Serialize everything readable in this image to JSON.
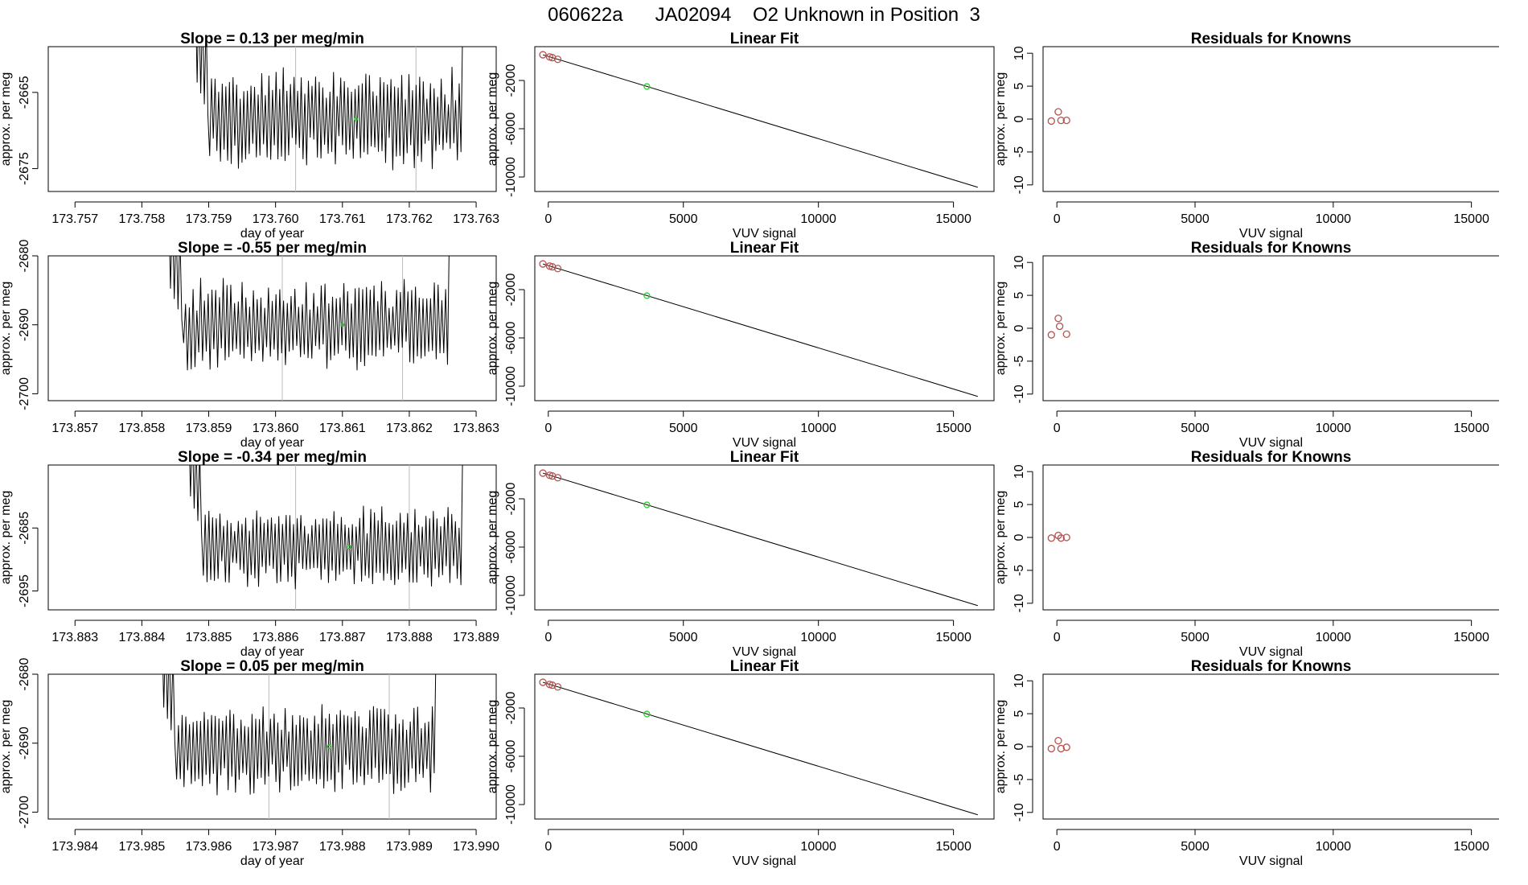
{
  "page_title": "060622a      JA02094    O2 Unknown in Position  3",
  "colors": {
    "series": "#000000",
    "known_point": "#b5524e",
    "unknown_point": "#22cc22",
    "fit_line": "#000000",
    "guide_line": "#bbbbbb"
  },
  "chart_data": [
    {
      "type": "line",
      "title": "Slope =  0.13  per meg/min",
      "xlabel": "day of year",
      "ylabel": "approx. per meg",
      "xlim": [
        173.7566,
        173.7633
      ],
      "ylim": [
        -2678,
        -2659
      ],
      "xticks": [
        173.757,
        173.758,
        173.759,
        173.76,
        173.761,
        173.762,
        173.763
      ],
      "xtick_labels": [
        "173.757",
        "173.758",
        "173.759",
        "173.760",
        "173.761",
        "173.762",
        "173.763"
      ],
      "yticks": [
        -2665,
        -2675
      ],
      "ytick_labels": [
        "-2665",
        "-2675"
      ],
      "series_x_range": [
        173.7588,
        173.7628
      ],
      "series_mean": -2668.5,
      "series_amplitude": 6,
      "series_points": 150,
      "vlines": [
        173.7603,
        173.7621
      ],
      "unknown_marker": {
        "x": 173.7612,
        "y": -2668.5
      }
    },
    {
      "type": "scatter",
      "title": "Linear Fit",
      "xlabel": "VUV signal",
      "ylabel": "approx. per meg",
      "xlim": [
        -500,
        16500
      ],
      "ylim": [
        -11200,
        800
      ],
      "xticks": [
        0,
        5000,
        10000,
        15000
      ],
      "xtick_labels": [
        "0",
        "5000",
        "10000",
        "15000"
      ],
      "yticks": [
        -2000,
        -6000,
        -10000
      ],
      "ytick_labels": [
        "-2000",
        "-6000",
        "-10000"
      ],
      "fit_line": {
        "x": [
          -200,
          15900
        ],
        "y": [
          130,
          -10850
        ]
      },
      "known_points": {
        "x": [
          -200,
          50,
          150,
          350
        ],
        "y": [
          130,
          -50,
          -110,
          -250
        ]
      },
      "unknown_points": {
        "x": [
          3650
        ],
        "y": [
          -2500
        ]
      }
    },
    {
      "type": "scatter",
      "title": "Residuals for Knowns",
      "xlabel": "VUV signal",
      "ylabel": "approx. per meg",
      "xlim": [
        -500,
        16000
      ],
      "ylim": [
        -11,
        11
      ],
      "xticks": [
        0,
        5000,
        10000,
        15000
      ],
      "xtick_labels": [
        "0",
        "5000",
        "10000",
        "15000"
      ],
      "yticks": [
        10,
        5,
        0,
        -5,
        -10
      ],
      "ytick_labels": [
        "10",
        "5",
        "0",
        "-5",
        "-10"
      ],
      "known_points": {
        "x": [
          -200,
          50,
          150,
          350
        ],
        "y": [
          -0.3,
          1.1,
          -0.2,
          -0.2
        ]
      }
    },
    {
      "type": "line",
      "title": "Slope =  -0.55  per meg/min",
      "xlabel": "day of year",
      "ylabel": "approx. per meg",
      "xlim": [
        173.8566,
        173.8633
      ],
      "ylim": [
        -2701,
        -2680
      ],
      "xticks": [
        173.857,
        173.858,
        173.859,
        173.86,
        173.861,
        173.862,
        173.863
      ],
      "xtick_labels": [
        "173.857",
        "173.858",
        "173.859",
        "173.860",
        "173.861",
        "173.862",
        "173.863"
      ],
      "yticks": [
        -2680,
        -2690,
        -2700
      ],
      "ytick_labels": [
        "-2680",
        "-2690",
        "-2700"
      ],
      "series_x_range": [
        173.8584,
        173.8626
      ],
      "series_mean": -2690,
      "series_amplitude": 6,
      "series_points": 150,
      "vlines": [
        173.8601,
        173.8619
      ],
      "unknown_marker": {
        "x": 173.861,
        "y": -2690
      }
    },
    {
      "type": "scatter",
      "title": "Linear Fit",
      "xlabel": "VUV signal",
      "ylabel": "approx. per meg",
      "xlim": [
        -500,
        16500
      ],
      "ylim": [
        -11200,
        800
      ],
      "xticks": [
        0,
        5000,
        10000,
        15000
      ],
      "xtick_labels": [
        "0",
        "5000",
        "10000",
        "15000"
      ],
      "yticks": [
        -2000,
        -6000,
        -10000
      ],
      "ytick_labels": [
        "-2000",
        "-6000",
        "-10000"
      ],
      "fit_line": {
        "x": [
          -200,
          15900
        ],
        "y": [
          130,
          -10850
        ]
      },
      "known_points": {
        "x": [
          -200,
          50,
          150,
          350
        ],
        "y": [
          130,
          -50,
          -110,
          -250
        ]
      },
      "unknown_points": {
        "x": [
          3650
        ],
        "y": [
          -2500
        ]
      }
    },
    {
      "type": "scatter",
      "title": "Residuals for Knowns",
      "xlabel": "VUV signal",
      "ylabel": "approx. per meg",
      "xlim": [
        -500,
        16000
      ],
      "ylim": [
        -11,
        11
      ],
      "xticks": [
        0,
        5000,
        10000,
        15000
      ],
      "xtick_labels": [
        "0",
        "5000",
        "10000",
        "15000"
      ],
      "yticks": [
        10,
        5,
        0,
        -5,
        -10
      ],
      "ytick_labels": [
        "10",
        "5",
        "0",
        "-5",
        "-10"
      ],
      "known_points": {
        "x": [
          -200,
          50,
          100,
          350
        ],
        "y": [
          -1.0,
          1.5,
          0.3,
          -0.9
        ]
      }
    },
    {
      "type": "line",
      "title": "Slope =  -0.34  per meg/min",
      "xlabel": "day of year",
      "ylabel": "approx. per meg",
      "xlim": [
        173.8826,
        173.8893
      ],
      "ylim": [
        -2698,
        -2675
      ],
      "xticks": [
        173.883,
        173.884,
        173.885,
        173.886,
        173.887,
        173.888,
        173.889
      ],
      "xtick_labels": [
        "173.883",
        "173.884",
        "173.885",
        "173.886",
        "173.887",
        "173.888",
        "173.889"
      ],
      "yticks": [
        -2685,
        -2695
      ],
      "ytick_labels": [
        "-2685",
        "-2695"
      ],
      "series_x_range": [
        173.8847,
        173.8888
      ],
      "series_mean": -2688,
      "series_amplitude": 6,
      "series_points": 150,
      "vlines": [
        173.8863,
        173.888
      ],
      "unknown_marker": {
        "x": 173.8871,
        "y": -2688
      }
    },
    {
      "type": "scatter",
      "title": "Linear Fit",
      "xlabel": "VUV signal",
      "ylabel": "approx. per meg",
      "xlim": [
        -500,
        16500
      ],
      "ylim": [
        -11200,
        800
      ],
      "xticks": [
        0,
        5000,
        10000,
        15000
      ],
      "xtick_labels": [
        "0",
        "5000",
        "10000",
        "15000"
      ],
      "yticks": [
        -2000,
        -6000,
        -10000
      ],
      "ytick_labels": [
        "-2000",
        "-6000",
        "-10000"
      ],
      "fit_line": {
        "x": [
          -200,
          15900
        ],
        "y": [
          130,
          -10850
        ]
      },
      "known_points": {
        "x": [
          -200,
          50,
          150,
          350
        ],
        "y": [
          130,
          -50,
          -110,
          -250
        ]
      },
      "unknown_points": {
        "x": [
          3650
        ],
        "y": [
          -2500
        ]
      }
    },
    {
      "type": "scatter",
      "title": "Residuals for Knowns",
      "xlabel": "VUV signal",
      "ylabel": "approx. per meg",
      "xlim": [
        -500,
        16000
      ],
      "ylim": [
        -11,
        11
      ],
      "xticks": [
        0,
        5000,
        10000,
        15000
      ],
      "xtick_labels": [
        "0",
        "5000",
        "10000",
        "15000"
      ],
      "yticks": [
        10,
        5,
        0,
        -5,
        -10
      ],
      "ytick_labels": [
        "10",
        "5",
        "0",
        "-5",
        "-10"
      ],
      "known_points": {
        "x": [
          -200,
          50,
          150,
          350
        ],
        "y": [
          -0.1,
          0.3,
          -0.1,
          0.0
        ]
      }
    },
    {
      "type": "line",
      "title": "Slope =  0.05  per meg/min",
      "xlabel": "day of year",
      "ylabel": "approx. per meg",
      "xlim": [
        173.9836,
        173.9903
      ],
      "ylim": [
        -2701,
        -2680
      ],
      "xticks": [
        173.984,
        173.985,
        173.986,
        173.987,
        173.988,
        173.989,
        173.99
      ],
      "xtick_labels": [
        "173.984",
        "173.985",
        "173.986",
        "173.987",
        "173.988",
        "173.989",
        "173.990"
      ],
      "yticks": [
        -2680,
        -2690,
        -2700
      ],
      "ytick_labels": [
        "-2680",
        "-2690",
        "-2700"
      ],
      "series_x_range": [
        173.9853,
        173.9894
      ],
      "series_mean": -2691,
      "series_amplitude": 6,
      "series_points": 150,
      "vlines": [
        173.9869,
        173.9887
      ],
      "unknown_marker": {
        "x": 173.9878,
        "y": -2690.5
      }
    },
    {
      "type": "scatter",
      "title": "Linear Fit",
      "xlabel": "VUV signal",
      "ylabel": "approx. per meg",
      "xlim": [
        -500,
        16500
      ],
      "ylim": [
        -11200,
        800
      ],
      "xticks": [
        0,
        5000,
        10000,
        15000
      ],
      "xtick_labels": [
        "0",
        "5000",
        "10000",
        "15000"
      ],
      "yticks": [
        -2000,
        -6000,
        -10000
      ],
      "ytick_labels": [
        "-2000",
        "-6000",
        "-10000"
      ],
      "fit_line": {
        "x": [
          -200,
          15900
        ],
        "y": [
          130,
          -10850
        ]
      },
      "known_points": {
        "x": [
          -200,
          50,
          150,
          350
        ],
        "y": [
          130,
          -50,
          -110,
          -250
        ]
      },
      "unknown_points": {
        "x": [
          3650
        ],
        "y": [
          -2500
        ]
      }
    },
    {
      "type": "scatter",
      "title": "Residuals for Knowns",
      "xlabel": "VUV signal",
      "ylabel": "approx. per meg",
      "xlim": [
        -500,
        16000
      ],
      "ylim": [
        -11,
        11
      ],
      "xticks": [
        0,
        5000,
        10000,
        15000
      ],
      "xtick_labels": [
        "0",
        "5000",
        "10000",
        "15000"
      ],
      "yticks": [
        10,
        5,
        0,
        -5,
        -10
      ],
      "ytick_labels": [
        "10",
        "5",
        "0",
        "-5",
        "-10"
      ],
      "known_points": {
        "x": [
          -200,
          50,
          150,
          350
        ],
        "y": [
          -0.3,
          0.9,
          -0.3,
          -0.1
        ]
      }
    }
  ]
}
